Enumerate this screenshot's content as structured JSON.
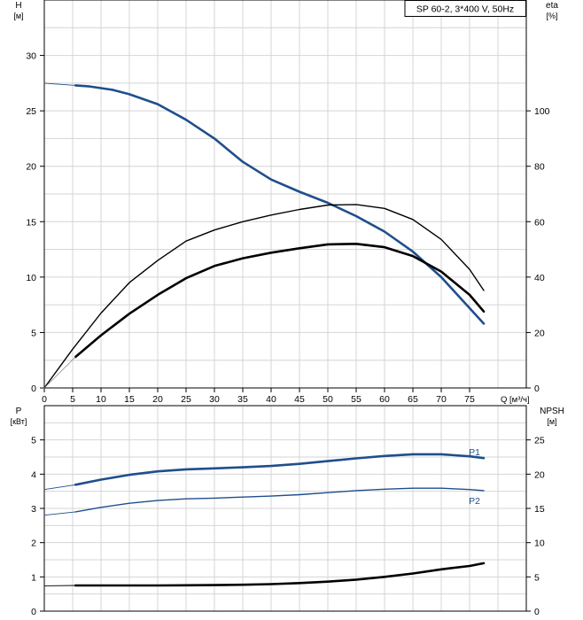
{
  "chart_data": [
    {
      "type": "line",
      "title": "SP 60-2, 3*400 V, 50Hz",
      "xlabel": "Q [м³/ч]",
      "xlim": [
        0,
        85
      ],
      "xticks": [
        0,
        5,
        10,
        15,
        20,
        25,
        30,
        35,
        40,
        45,
        50,
        55,
        60,
        65,
        70,
        75
      ],
      "left_axis": {
        "label_line1": "H",
        "label_line2": "[м]",
        "ylim": [
          0,
          35
        ],
        "ticks": [
          0,
          5,
          10,
          15,
          20,
          25,
          30
        ]
      },
      "right_axis": {
        "label_line1": "eta",
        "label_line2": "[%]",
        "ylim": [
          0,
          140
        ],
        "ticks": [
          0,
          20,
          40,
          60,
          80,
          100
        ]
      },
      "grid": true,
      "series": [
        {
          "role": "H",
          "axis": "left",
          "color": "#1f4e8c",
          "width": 2.6,
          "x": [
            5.5,
            8,
            12,
            15,
            20,
            25,
            30,
            35,
            40,
            45,
            50,
            55,
            60,
            65,
            70,
            75,
            77.5
          ],
          "y": [
            27.3,
            27.2,
            26.9,
            26.5,
            25.6,
            24.2,
            22.5,
            20.4,
            18.8,
            17.7,
            16.7,
            15.5,
            14.1,
            12.3,
            10.0,
            7.2,
            5.8
          ]
        },
        {
          "role": "H-extension",
          "axis": "left",
          "color": "#1f4e8c",
          "width": 0.9,
          "x": [
            0,
            5.5
          ],
          "y": [
            27.5,
            27.3
          ]
        },
        {
          "role": "eta-pump",
          "axis": "right",
          "color": "#000000",
          "width": 1.4,
          "x": [
            0,
            5,
            10,
            15,
            20,
            25,
            30,
            35,
            40,
            45,
            50,
            55,
            60,
            65,
            70,
            75,
            77.5
          ],
          "y": [
            0,
            14,
            27,
            38,
            46,
            53,
            57,
            60,
            62.4,
            64.4,
            66,
            66.2,
            64.8,
            60.8,
            53.6,
            42.8,
            35.2
          ]
        },
        {
          "role": "eta-total",
          "axis": "right",
          "color": "#000000",
          "width": 2.6,
          "x": [
            5.5,
            10,
            15,
            20,
            25,
            30,
            35,
            40,
            45,
            50,
            55,
            60,
            65,
            70,
            75,
            77.5
          ],
          "y": [
            11.2,
            19,
            26.8,
            33.6,
            39.6,
            44,
            46.8,
            48.8,
            50.4,
            51.8,
            52,
            50.8,
            47.6,
            42,
            33.6,
            27.6
          ]
        },
        {
          "role": "eta-extension",
          "axis": "right",
          "color": "#888888",
          "width": 0.8,
          "x": [
            0,
            5.5
          ],
          "y": [
            0,
            11.2
          ]
        }
      ]
    },
    {
      "type": "line",
      "xlim": [
        0,
        85
      ],
      "left_axis": {
        "label_line1": "P",
        "label_line2": "[кВт]",
        "ylim": [
          0,
          6
        ],
        "ticks": [
          0,
          1,
          2,
          3,
          4,
          5
        ]
      },
      "right_axis": {
        "label_line1": "NPSH",
        "label_line2": "[м]",
        "ylim": [
          0,
          30
        ],
        "ticks": [
          0,
          5,
          10,
          15,
          20,
          25
        ]
      },
      "grid": true,
      "series": [
        {
          "name": "P1",
          "axis": "left",
          "color": "#1f4e8c",
          "width": 2.6,
          "x": [
            5.5,
            10,
            15,
            20,
            25,
            30,
            35,
            40,
            45,
            50,
            55,
            60,
            65,
            70,
            75,
            77.5
          ],
          "y": [
            3.69,
            3.84,
            3.98,
            4.08,
            4.14,
            4.17,
            4.2,
            4.24,
            4.3,
            4.38,
            4.46,
            4.53,
            4.58,
            4.58,
            4.52,
            4.47
          ]
        },
        {
          "role": "P1-extension",
          "axis": "left",
          "color": "#1f4e8c",
          "width": 0.9,
          "x": [
            0,
            5.5
          ],
          "y": [
            3.55,
            3.69
          ]
        },
        {
          "name": "P2",
          "axis": "left",
          "color": "#1f4e8c",
          "width": 1.4,
          "x": [
            5.5,
            10,
            15,
            20,
            25,
            30,
            35,
            40,
            45,
            50,
            55,
            60,
            65,
            70,
            75,
            77.5
          ],
          "y": [
            2.9,
            3.03,
            3.15,
            3.23,
            3.28,
            3.3,
            3.33,
            3.36,
            3.4,
            3.46,
            3.52,
            3.56,
            3.59,
            3.59,
            3.55,
            3.52
          ]
        },
        {
          "role": "P2-extension",
          "axis": "left",
          "color": "#1f4e8c",
          "width": 0.9,
          "x": [
            0,
            5.5
          ],
          "y": [
            2.8,
            2.9
          ]
        },
        {
          "role": "NPSH",
          "axis": "right",
          "color": "#000000",
          "width": 2.6,
          "x": [
            5.5,
            10,
            15,
            20,
            25,
            30,
            35,
            40,
            45,
            50,
            55,
            60,
            65,
            70,
            75,
            77.5
          ],
          "y": [
            3.75,
            3.75,
            3.75,
            3.75,
            3.77,
            3.8,
            3.85,
            3.95,
            4.1,
            4.3,
            4.6,
            5.0,
            5.5,
            6.1,
            6.6,
            7.0
          ]
        },
        {
          "role": "NPSH-extension",
          "axis": "right",
          "color": "#000000",
          "width": 0.9,
          "x": [
            0,
            5.5
          ],
          "y": [
            3.7,
            3.75
          ]
        }
      ]
    }
  ]
}
